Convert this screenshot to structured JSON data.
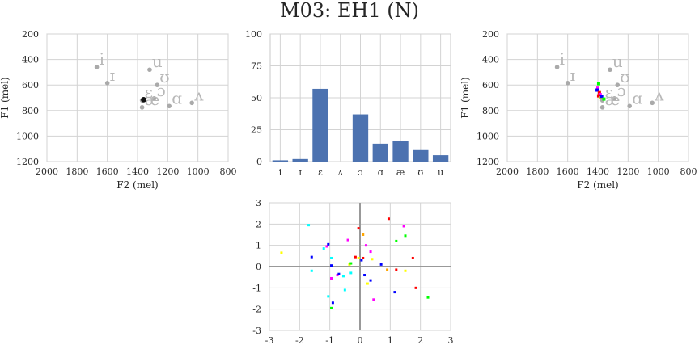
{
  "figure": {
    "title": "M03: EH1 (N)"
  },
  "chart_data": [
    {
      "id": "formant_ref",
      "type": "scatter",
      "xlabel": "F2 (mel)",
      "ylabel": "F1 (mel)",
      "xlim": [
        2000,
        800
      ],
      "ylim": [
        1200,
        200
      ],
      "xticks": [
        2000,
        1800,
        1600,
        1400,
        1200,
        1000,
        800
      ],
      "yticks": [
        200,
        400,
        600,
        800,
        1000,
        1200
      ],
      "grid": true,
      "vowels": [
        {
          "label": "i",
          "f2": 1670,
          "f1": 460
        },
        {
          "label": "ɪ",
          "f2": 1600,
          "f1": 585
        },
        {
          "label": "u",
          "f2": 1320,
          "f1": 480
        },
        {
          "label": "ʊ",
          "f2": 1270,
          "f1": 600
        },
        {
          "label": "ɛ",
          "f2": 1370,
          "f1": 720
        },
        {
          "label": "ɔ",
          "f2": 1290,
          "f1": 705
        },
        {
          "label": "æ",
          "f2": 1370,
          "f1": 775
        },
        {
          "label": "ɑ",
          "f2": 1190,
          "f1": 765
        },
        {
          "label": "ʌ",
          "f2": 1040,
          "f1": 740
        }
      ],
      "highlight": [
        {
          "f2": 1360,
          "f1": 715
        }
      ]
    },
    {
      "id": "classification",
      "type": "bar",
      "categories": [
        "i",
        "ɪ",
        "ɛ",
        "ʌ",
        "ɔ",
        "ɑ",
        "æ",
        "ʊ",
        "u"
      ],
      "values": [
        1,
        2,
        57,
        0,
        37,
        14,
        16,
        9,
        5
      ],
      "ylim": [
        0,
        100
      ],
      "yticks": [
        0,
        25,
        50,
        75,
        100
      ],
      "color": "#4c72b0",
      "grid": true
    },
    {
      "id": "formant_tokens",
      "type": "scatter",
      "xlabel": "F2 (mel)",
      "ylabel": "F1 (mel)",
      "xlim": [
        2000,
        800
      ],
      "ylim": [
        1200,
        200
      ],
      "xticks": [
        2000,
        1800,
        1600,
        1400,
        1200,
        1000,
        800
      ],
      "yticks": [
        200,
        400,
        600,
        800,
        1000,
        1200
      ],
      "grid": true,
      "tokens": [
        {
          "f2": 1395,
          "f1": 590,
          "color": "#00ff00"
        },
        {
          "f2": 1400,
          "f1": 625,
          "color": "#ff00ff"
        },
        {
          "f2": 1405,
          "f1": 640,
          "color": "#0000ff"
        },
        {
          "f2": 1390,
          "f1": 660,
          "color": "#ff0000"
        },
        {
          "f2": 1385,
          "f1": 675,
          "color": "#ff00ff"
        },
        {
          "f2": 1395,
          "f1": 685,
          "color": "#ff0000"
        },
        {
          "f2": 1380,
          "f1": 700,
          "color": "#ffff00"
        },
        {
          "f2": 1375,
          "f1": 690,
          "color": "#0000ff"
        },
        {
          "f2": 1360,
          "f1": 710,
          "color": "#00ff00"
        }
      ]
    },
    {
      "id": "projection",
      "type": "scatter",
      "xlim": [
        -3,
        3
      ],
      "ylim": [
        -3,
        3
      ],
      "xticks": [
        -3,
        -2,
        -1,
        0,
        1,
        2,
        3
      ],
      "yticks": [
        -3,
        -2,
        -1,
        0,
        1,
        2,
        3
      ],
      "grid": true,
      "zero_lines": true,
      "points": [
        {
          "x": -2.6,
          "y": 0.65,
          "color": "#ffff00"
        },
        {
          "x": -1.7,
          "y": 1.95,
          "color": "#00ffff"
        },
        {
          "x": -1.6,
          "y": 0.45,
          "color": "#0000ff"
        },
        {
          "x": -1.6,
          "y": -0.2,
          "color": "#00ffff"
        },
        {
          "x": -1.2,
          "y": 0.85,
          "color": "#00ffff"
        },
        {
          "x": -1.1,
          "y": 0.95,
          "color": "#ff00ff"
        },
        {
          "x": -1.05,
          "y": 1.05,
          "color": "#0000ff"
        },
        {
          "x": -1.05,
          "y": -1.4,
          "color": "#00ffff"
        },
        {
          "x": -0.95,
          "y": 0.05,
          "color": "#0000ff"
        },
        {
          "x": -0.95,
          "y": 0.4,
          "color": "#00ffff"
        },
        {
          "x": -0.95,
          "y": -0.55,
          "color": "#ff00ff"
        },
        {
          "x": -0.9,
          "y": -1.7,
          "color": "#0000ff"
        },
        {
          "x": -0.95,
          "y": -1.95,
          "color": "#00ff00"
        },
        {
          "x": -0.75,
          "y": -0.4,
          "color": "#ff00ff"
        },
        {
          "x": -0.7,
          "y": -0.35,
          "color": "#0000ff"
        },
        {
          "x": -0.55,
          "y": -0.45,
          "color": "#00ffff"
        },
        {
          "x": -0.5,
          "y": -1.1,
          "color": "#00ffff"
        },
        {
          "x": -0.4,
          "y": 1.25,
          "color": "#ff00ff"
        },
        {
          "x": -0.35,
          "y": 0.1,
          "color": "#ffff00"
        },
        {
          "x": -0.3,
          "y": -0.3,
          "color": "#00ffff"
        },
        {
          "x": -0.3,
          "y": 0.15,
          "color": "#00ff00"
        },
        {
          "x": -0.15,
          "y": 0.45,
          "color": "#ff0000"
        },
        {
          "x": -0.05,
          "y": 1.8,
          "color": "#ff0000"
        },
        {
          "x": -0.05,
          "y": 0.4,
          "color": "#ffff00"
        },
        {
          "x": 0.05,
          "y": 0.3,
          "color": "#0000ff"
        },
        {
          "x": 0.1,
          "y": 0.4,
          "color": "#ff0000"
        },
        {
          "x": 0.1,
          "y": 1.5,
          "color": "#ffa500"
        },
        {
          "x": 0.15,
          "y": -0.4,
          "color": "#0000ff"
        },
        {
          "x": 0.2,
          "y": 1.0,
          "color": "#ff00ff"
        },
        {
          "x": 0.25,
          "y": -0.8,
          "color": "#ffff00"
        },
        {
          "x": 0.35,
          "y": 0.7,
          "color": "#ff00ff"
        },
        {
          "x": 0.35,
          "y": -0.65,
          "color": "#0000ff"
        },
        {
          "x": 0.4,
          "y": 0.35,
          "color": "#ffff00"
        },
        {
          "x": 0.45,
          "y": -1.55,
          "color": "#ff00ff"
        },
        {
          "x": 0.7,
          "y": 0.1,
          "color": "#0000ff"
        },
        {
          "x": 0.9,
          "y": -0.15,
          "color": "#ffa500"
        },
        {
          "x": 0.95,
          "y": 2.25,
          "color": "#ff0000"
        },
        {
          "x": 1.15,
          "y": -1.2,
          "color": "#0000ff"
        },
        {
          "x": 1.2,
          "y": -0.15,
          "color": "#ff0000"
        },
        {
          "x": 1.2,
          "y": 1.2,
          "color": "#00ff00"
        },
        {
          "x": 1.45,
          "y": 1.9,
          "color": "#ff00ff"
        },
        {
          "x": 1.5,
          "y": 1.45,
          "color": "#00ff00"
        },
        {
          "x": 1.5,
          "y": -0.2,
          "color": "#ffff00"
        },
        {
          "x": 1.75,
          "y": 0.4,
          "color": "#ff0000"
        },
        {
          "x": 1.85,
          "y": -1.0,
          "color": "#ff0000"
        },
        {
          "x": 2.25,
          "y": -1.45,
          "color": "#00ff00"
        }
      ]
    }
  ]
}
